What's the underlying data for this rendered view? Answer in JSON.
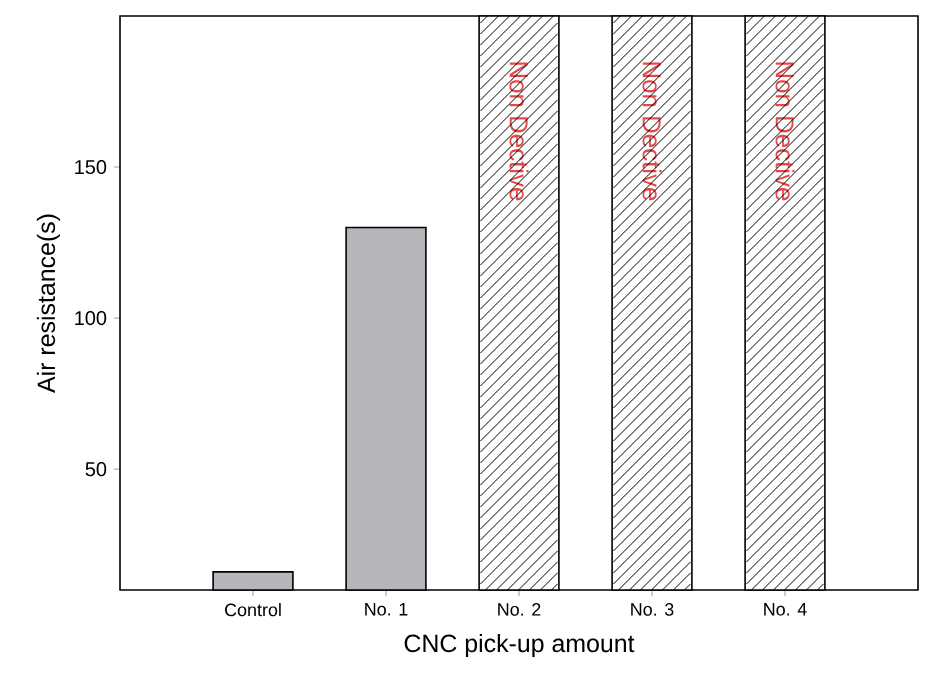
{
  "chart_data": {
    "type": "bar",
    "xlabel": "CNC pick-up amount",
    "ylabel": "Air resistance(s)",
    "categories": [
      "Control",
      "No. 1",
      "No. 2",
      "No. 3",
      "No. 4"
    ],
    "values": [
      16,
      130,
      200,
      200,
      200
    ],
    "colors": [
      "#b5b6b9",
      "#b5b6b9",
      "#ffffff",
      "#ffffff",
      "#ffffff"
    ],
    "value_labels": [
      null,
      null,
      "Non Dective",
      "Non Dective",
      "Non Dective"
    ],
    "ylim": [
      10,
      200
    ],
    "yticks": [
      50,
      100,
      150
    ],
    "grid": false
  }
}
